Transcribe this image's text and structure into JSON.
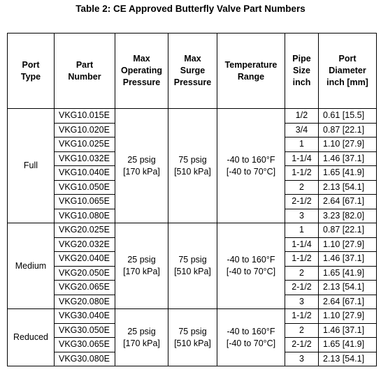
{
  "title": "Table 2: CE Approved Butterfly Valve Part Numbers",
  "table": {
    "header": [
      [
        "Port",
        "Type"
      ],
      [
        "Part",
        "Number"
      ],
      [
        "Max",
        "Operating",
        "Pressure"
      ],
      [
        "Max",
        "Surge",
        "Pressure"
      ],
      [
        "Temperature",
        "Range"
      ],
      [
        "Pipe",
        "Size",
        "inch"
      ],
      [
        "Port",
        "Diameter",
        "inch [mm]"
      ]
    ],
    "groups": [
      {
        "port_type": "Full",
        "max_operating_pressure": [
          "25 psig",
          "[170 kPa]"
        ],
        "max_surge_pressure": [
          "75 psig",
          "[510 kPa]"
        ],
        "temperature_range": [
          "-40 to 160°F",
          "[-40 to 70°C]"
        ],
        "rows": [
          [
            "VKG10.015E",
            "1/2",
            "0.61 [15.5]"
          ],
          [
            "VKG10.020E",
            "3/4",
            "0.87 [22.1]"
          ],
          [
            "VKG10.025E",
            "1",
            "1.10 [27.9]"
          ],
          [
            "VKG10.032E",
            "1-1/4",
            "1.46 [37.1]"
          ],
          [
            "VKG10.040E",
            "1-1/2",
            "1.65 [41.9]"
          ],
          [
            "VKG10.050E",
            "2",
            "2.13 [54.1]"
          ],
          [
            "VKG10.065E",
            "2-1/2",
            "2.64 [67.1]"
          ],
          [
            "VKG10.080E",
            "3",
            "3.23 [82.0]"
          ]
        ]
      },
      {
        "port_type": "Medium",
        "max_operating_pressure": [
          "25 psig",
          "[170 kPa]"
        ],
        "max_surge_pressure": [
          "75 psig",
          "[510 kPa]"
        ],
        "temperature_range": [
          "-40 to 160°F",
          "[-40 to 70°C]"
        ],
        "rows": [
          [
            "VKG20.025E",
            "1",
            "0.87 [22.1]"
          ],
          [
            "VKG20.032E",
            "1-1/4",
            "1.10 [27.9]"
          ],
          [
            "VKG20.040E",
            "1-1/2",
            "1.46 [37.1]"
          ],
          [
            "VKG20.050E",
            "2",
            "1.65 [41.9]"
          ],
          [
            "VKG20.065E",
            "2-1/2",
            "2.13 [54.1]"
          ],
          [
            "VKG20.080E",
            "3",
            "2.64 [67.1]"
          ]
        ]
      },
      {
        "port_type": "Reduced",
        "max_operating_pressure": [
          "25 psig",
          "[170 kPa]"
        ],
        "max_surge_pressure": [
          "75 psig",
          "[510 kPa]"
        ],
        "temperature_range": [
          "-40 to 160°F",
          "[-40 to 70°C]"
        ],
        "rows": [
          [
            "VKG30.040E",
            "1-1/2",
            "1.10 [27.9]"
          ],
          [
            "VKG30.050E",
            "2",
            "1.46 [37.1]"
          ],
          [
            "VKG30.065E",
            "2-1/2",
            "1.65 [41.9]"
          ],
          [
            "VKG30.080E",
            "3",
            "2.13 [54.1]"
          ]
        ]
      }
    ]
  }
}
